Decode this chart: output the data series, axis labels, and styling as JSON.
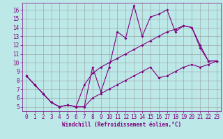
{
  "xlabel": "Windchill (Refroidissement éolien,°C)",
  "x_values": [
    0,
    1,
    2,
    3,
    4,
    5,
    6,
    7,
    8,
    9,
    10,
    11,
    12,
    13,
    14,
    15,
    16,
    17,
    18,
    19,
    20,
    21,
    22,
    23
  ],
  "line1_y": [
    8.5,
    7.5,
    6.5,
    5.5,
    5.0,
    5.2,
    5.0,
    5.0,
    9.5,
    6.7,
    9.5,
    13.5,
    12.8,
    16.5,
    13.0,
    15.2,
    15.5,
    16.0,
    13.5,
    14.2,
    14.0,
    12.0,
    10.2,
    10.2
  ],
  "line2_y": [
    8.5,
    7.5,
    6.5,
    5.5,
    5.0,
    5.2,
    5.0,
    7.5,
    8.8,
    9.5,
    10.0,
    10.5,
    11.0,
    11.5,
    12.0,
    12.5,
    13.0,
    13.5,
    13.8,
    14.2,
    14.0,
    11.7,
    10.2,
    10.2
  ],
  "line3_y": [
    8.5,
    7.5,
    6.5,
    5.5,
    5.0,
    5.2,
    5.0,
    5.0,
    6.0,
    6.5,
    7.0,
    7.5,
    8.0,
    8.5,
    9.0,
    9.5,
    8.3,
    8.5,
    9.0,
    9.5,
    9.8,
    9.5,
    9.8,
    10.2
  ],
  "bg_color": "#bde8e8",
  "line_color": "#800080",
  "grid_color": "#999999",
  "ylim": [
    4.5,
    16.8
  ],
  "xlim": [
    -0.5,
    23.5
  ],
  "yticks": [
    5,
    6,
    7,
    8,
    9,
    10,
    11,
    12,
    13,
    14,
    15,
    16
  ],
  "xticks": [
    0,
    1,
    2,
    3,
    4,
    5,
    6,
    7,
    8,
    9,
    10,
    11,
    12,
    13,
    14,
    15,
    16,
    17,
    18,
    19,
    20,
    21,
    22,
    23
  ],
  "marker": "D",
  "markersize": 2.0,
  "linewidth": 0.8,
  "tick_fontsize": 5.5,
  "xlabel_fontsize": 5.5
}
